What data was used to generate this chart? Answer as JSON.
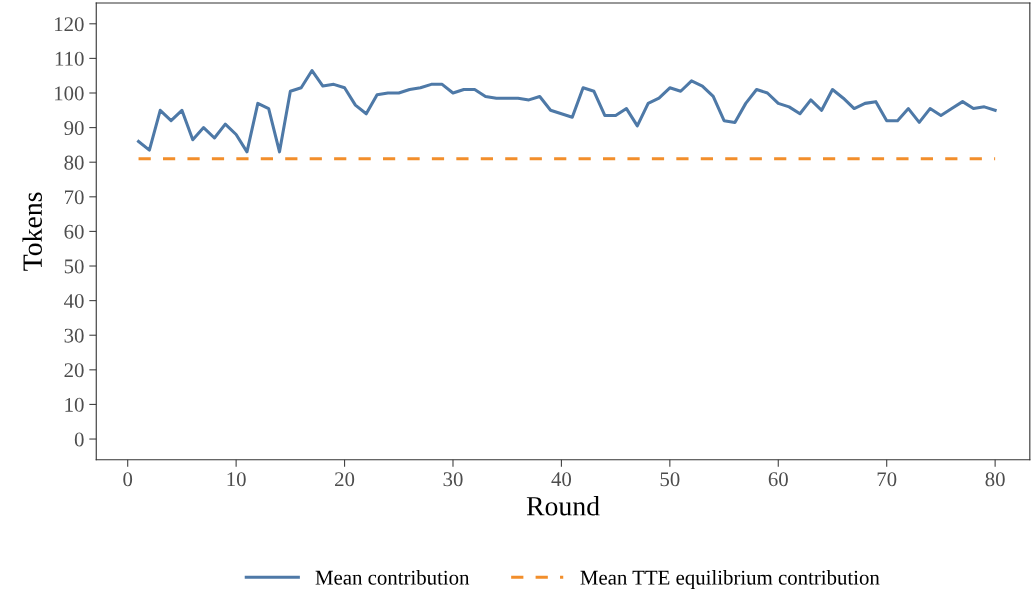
{
  "chart_data": {
    "type": "line",
    "xlabel": "Round",
    "ylabel": "Tokens",
    "xlim": [
      -2.9,
      83.2
    ],
    "ylim": [
      -6,
      126
    ],
    "xticks": [
      0,
      10,
      20,
      30,
      40,
      50,
      60,
      70,
      80
    ],
    "yticks": [
      0,
      10,
      20,
      30,
      40,
      50,
      60,
      70,
      80,
      90,
      100,
      110,
      120
    ],
    "grid": false,
    "legend": "bottom",
    "x": [
      1,
      2,
      3,
      4,
      5,
      6,
      7,
      8,
      9,
      10,
      11,
      12,
      13,
      14,
      15,
      16,
      17,
      18,
      19,
      20,
      21,
      22,
      23,
      24,
      25,
      26,
      27,
      28,
      29,
      30,
      31,
      32,
      33,
      34,
      35,
      36,
      37,
      38,
      39,
      40,
      41,
      42,
      43,
      44,
      45,
      46,
      47,
      48,
      49,
      50,
      51,
      52,
      53,
      54,
      55,
      56,
      57,
      58,
      59,
      60,
      61,
      62,
      63,
      64,
      65,
      66,
      67,
      68,
      69,
      70,
      71,
      72,
      73,
      74,
      75,
      76,
      77,
      78,
      79,
      80
    ],
    "series": [
      {
        "name": "Mean contribution",
        "color": "#4e79a7",
        "line_style": "solid",
        "values": [
          86,
          83.5,
          95,
          92,
          95,
          86.5,
          90,
          87,
          91,
          88,
          83,
          97,
          95.5,
          83,
          100.5,
          101.5,
          106.5,
          102,
          102.5,
          101.5,
          96.5,
          94,
          99.5,
          100,
          100,
          101,
          101.5,
          102.5,
          102.5,
          100,
          101,
          101,
          99,
          98.5,
          98.5,
          98.5,
          98,
          99,
          95,
          94,
          93,
          101.5,
          100.5,
          93.5,
          93.5,
          95.5,
          90.5,
          97,
          98.5,
          101.5,
          100.5,
          103.5,
          102,
          99,
          92,
          91.5,
          97,
          101,
          100,
          97,
          96,
          94,
          98,
          95,
          101,
          98.5,
          95.5,
          97,
          97.5,
          92,
          92,
          95.5,
          91.5,
          95.5,
          93.5,
          95.5,
          97.5,
          95.5,
          96,
          95
        ]
      },
      {
        "name": "Mean TTE equilibrium contribution",
        "color": "#f28e2b",
        "line_style": "dashed",
        "x": [
          1,
          80
        ],
        "values": [
          81,
          81
        ]
      }
    ]
  }
}
